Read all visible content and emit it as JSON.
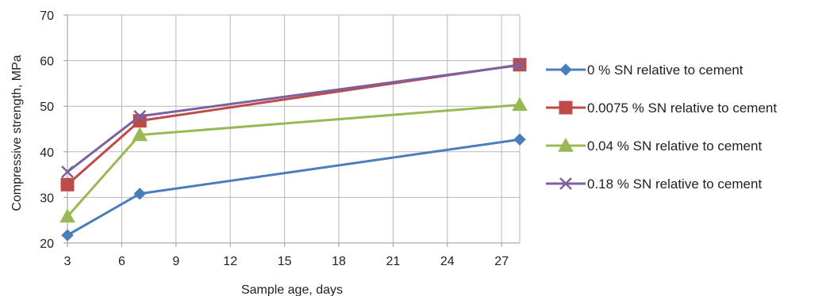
{
  "chart_data": {
    "type": "line",
    "title": "",
    "xlabel": "Sample age, days",
    "ylabel": "Compressive strength, MPa",
    "x": [
      3,
      7,
      28
    ],
    "xlim": [
      3,
      28
    ],
    "ylim": [
      20,
      70
    ],
    "xticks": [
      3,
      6,
      9,
      12,
      15,
      18,
      21,
      24,
      27
    ],
    "yticks": [
      20,
      30,
      40,
      50,
      60,
      70
    ],
    "grid": true,
    "legend_position": "right",
    "series": [
      {
        "name": "0 % SN relative to cement",
        "values": [
          21.7,
          30.8,
          42.7
        ],
        "color": "#4a7ebb",
        "marker": "diamond"
      },
      {
        "name": "0.0075 % SN relative to cement",
        "values": [
          32.8,
          46.8,
          59.1
        ],
        "color": "#be4b48",
        "marker": "square"
      },
      {
        "name": "0.04 % SN relative to cement",
        "values": [
          25.8,
          43.7,
          50.3
        ],
        "color": "#98b954",
        "marker": "triangle"
      },
      {
        "name": "0.18 % SN relative to cement",
        "values": [
          35.6,
          47.8,
          59.0
        ],
        "color": "#7d60a0",
        "marker": "x"
      }
    ]
  }
}
